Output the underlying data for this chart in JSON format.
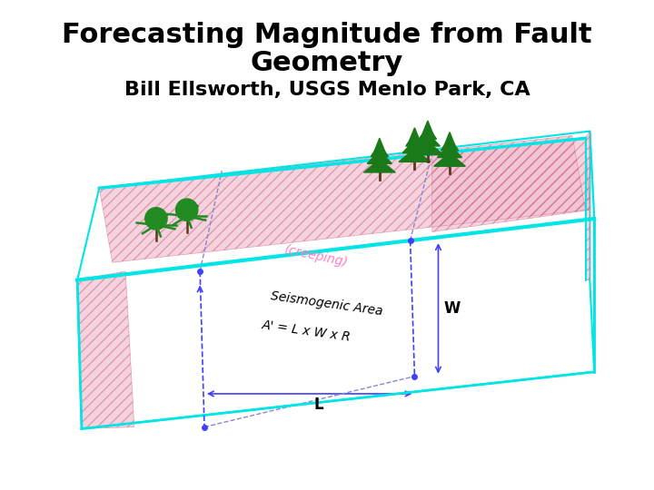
{
  "title_line1": "Forecasting Magnitude from Fault",
  "title_line2": "Geometry",
  "subtitle": "Bill Ellsworth, USGS Menlo Park, CA",
  "title_fontsize": 22,
  "subtitle_fontsize": 16,
  "bg_color": "#ffffff",
  "cyan_color": "#00e5e5",
  "pink_hatch_color": "#ffb0c8",
  "pink_text_color": "#ff80c0",
  "blue_line_color": "#4040ff",
  "annotation_color": "#000000",
  "dashed_line_color": "#8888cc",
  "creeping_text_color": "#ff80c0",
  "label_W": "W",
  "label_L": "L",
  "label_seismogenic": "Seismogenic Area",
  "label_formula": "A' = L x W x R"
}
